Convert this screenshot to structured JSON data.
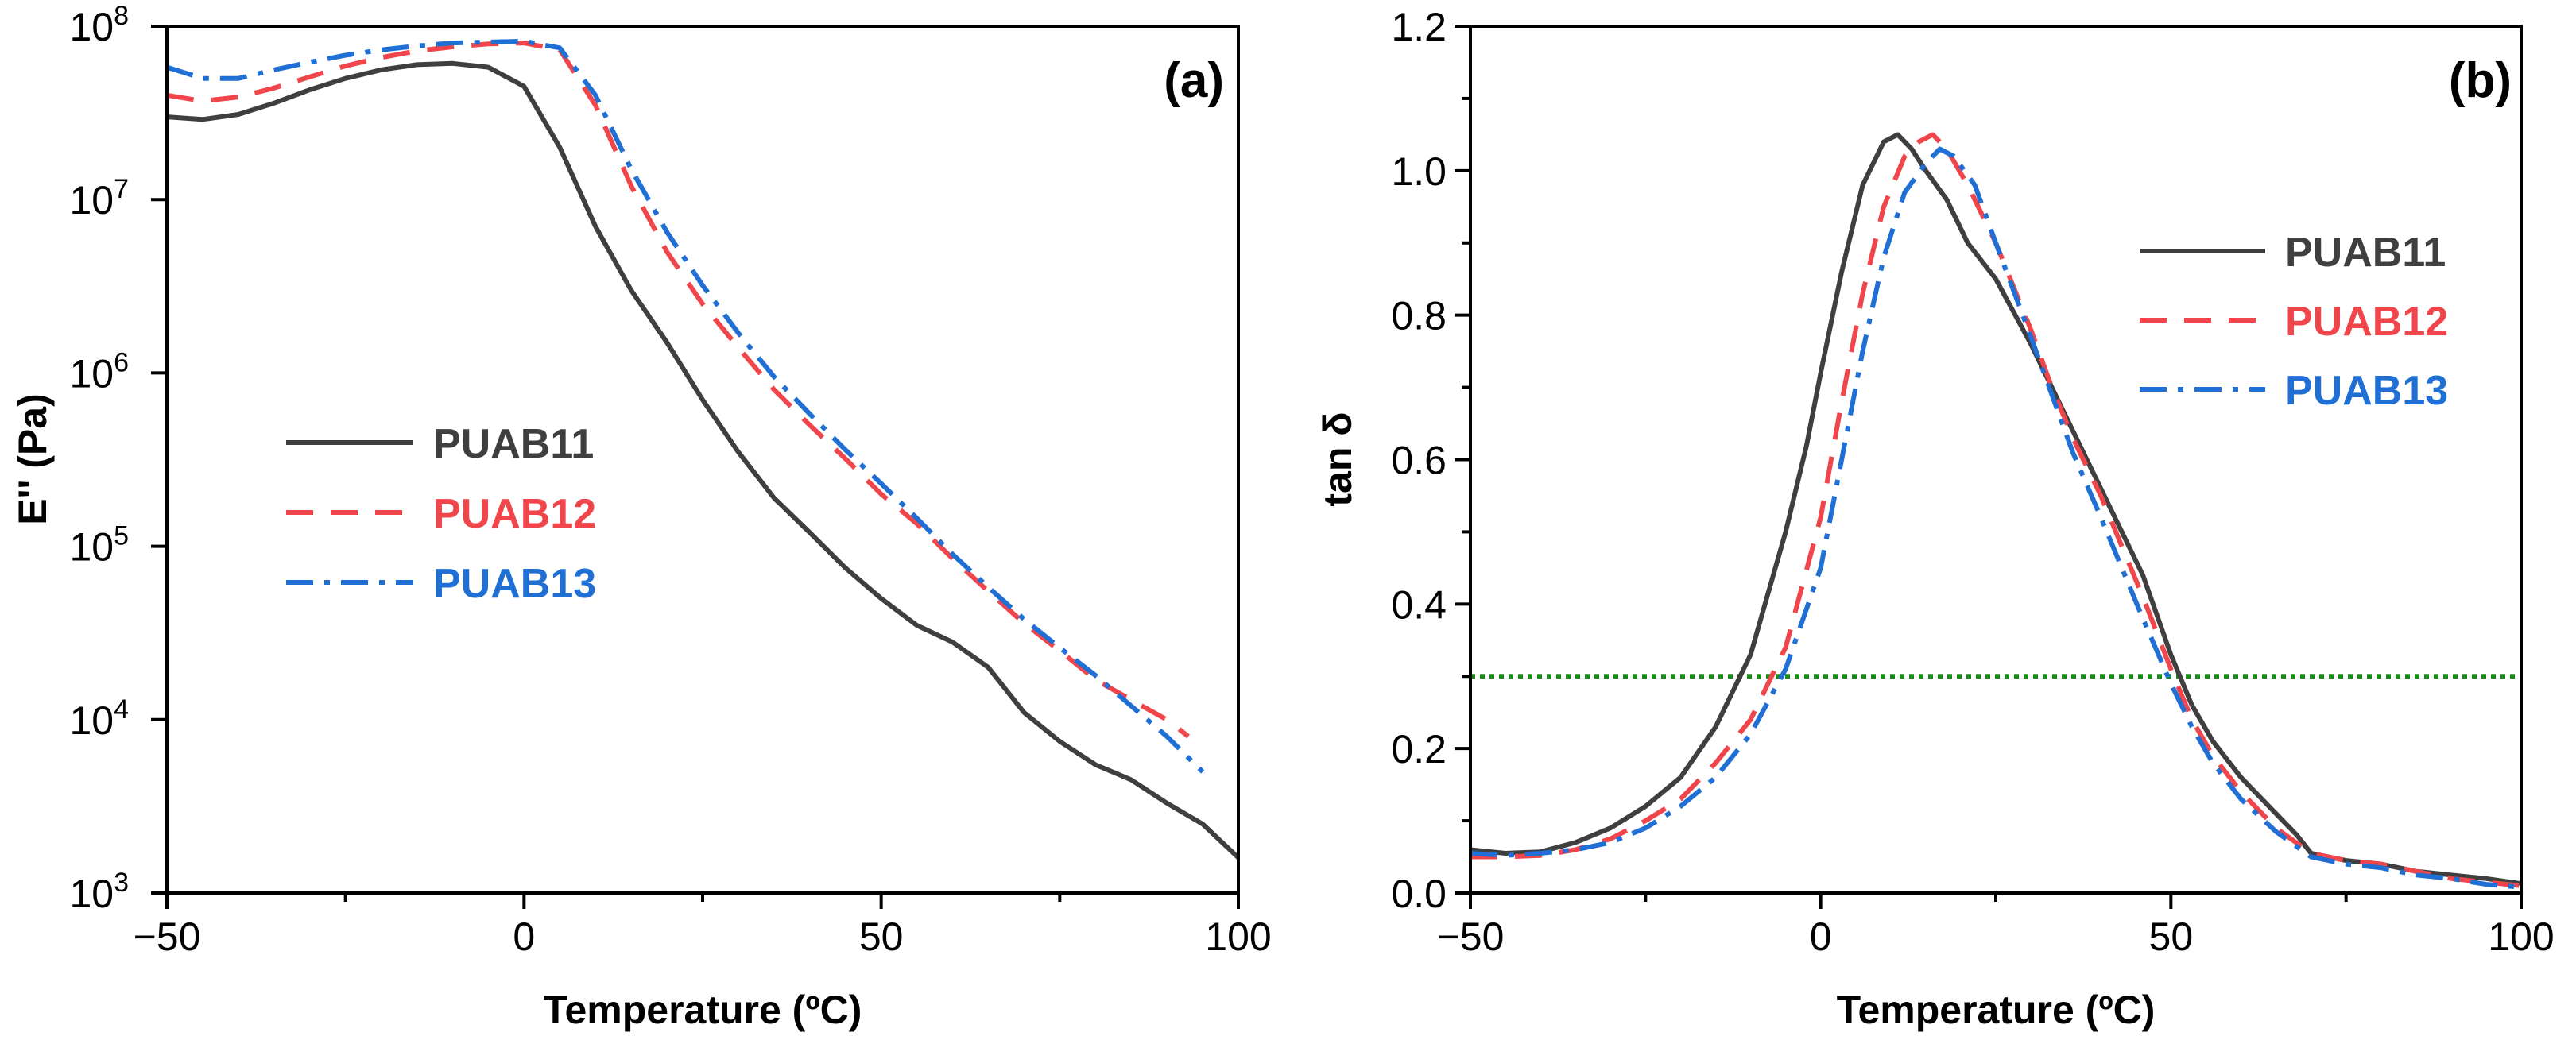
{
  "chart_data": [
    {
      "type": "line",
      "panel_label": "(a)",
      "xlabel": "Temperature (ºC)",
      "ylabel": "E'' (Pa)",
      "yscale": "log",
      "xlim": [
        -50,
        100
      ],
      "ylim": [
        1000,
        100000000
      ],
      "xticks": [
        -50,
        0,
        50,
        100
      ],
      "xtick_labels": [
        "−50",
        "0",
        "50",
        "100"
      ],
      "yticks": [
        1000,
        10000,
        100000,
        1000000,
        10000000,
        100000000
      ],
      "ytick_base": [
        "10",
        "10",
        "10",
        "10",
        "10",
        "10"
      ],
      "ytick_exp": [
        "3",
        "4",
        "5",
        "6",
        "7",
        "8"
      ],
      "legend_position": "middle-left",
      "series": [
        {
          "name": "PUAB11",
          "color": "#3f3f3f",
          "dash": "solid",
          "x": [
            -50,
            -45,
            -40,
            -35,
            -30,
            -25,
            -20,
            -15,
            -10,
            -5,
            0,
            5,
            10,
            15,
            20,
            25,
            30,
            35,
            40,
            45,
            50,
            55,
            60,
            65,
            70,
            75,
            80,
            85,
            90,
            95,
            100
          ],
          "y": [
            30000000,
            29000000,
            31000000,
            36000000,
            43000000,
            50000000,
            56000000,
            60000000,
            61000000,
            58000000,
            45000000,
            20000000,
            7000000,
            3000000,
            1500000,
            700000,
            350000,
            190000,
            120000,
            75000,
            50000,
            35000,
            28000,
            20000,
            11000,
            7500,
            5500,
            4500,
            3300,
            2500,
            1600
          ]
        },
        {
          "name": "PUAB12",
          "color": "#f0464b",
          "dash": "dash",
          "x": [
            -50,
            -45,
            -40,
            -35,
            -30,
            -25,
            -20,
            -15,
            -10,
            -5,
            0,
            5,
            10,
            15,
            20,
            25,
            30,
            35,
            40,
            45,
            50,
            55,
            60,
            65,
            70,
            75,
            80,
            85,
            90,
            93
          ],
          "y": [
            40000000,
            37000000,
            39000000,
            44000000,
            51000000,
            59000000,
            66000000,
            72000000,
            76000000,
            79000000,
            80000000,
            73000000,
            35000000,
            12000000,
            5000000,
            2500000,
            1400000,
            800000,
            500000,
            320000,
            200000,
            135000,
            85000,
            55000,
            36000,
            25000,
            17000,
            13000,
            10000,
            8000
          ]
        },
        {
          "name": "PUAB13",
          "color": "#1f6fd4",
          "dash": "dashdot",
          "x": [
            -50,
            -45,
            -40,
            -35,
            -30,
            -25,
            -20,
            -15,
            -10,
            -5,
            0,
            5,
            10,
            15,
            20,
            25,
            30,
            35,
            40,
            45,
            50,
            55,
            60,
            65,
            70,
            75,
            80,
            85,
            90,
            95
          ],
          "y": [
            58000000,
            50000000,
            50000000,
            56000000,
            62000000,
            68000000,
            73000000,
            77000000,
            80000000,
            81000000,
            82000000,
            75000000,
            40000000,
            15000000,
            6500000,
            3200000,
            1700000,
            950000,
            580000,
            360000,
            230000,
            145000,
            90000,
            58000,
            38000,
            26000,
            18000,
            12000,
            8000,
            5000
          ]
        }
      ]
    },
    {
      "type": "line",
      "panel_label": "(b)",
      "xlabel": "Temperature (ºC)",
      "ylabel": "tan δ",
      "xlim": [
        -50,
        100
      ],
      "ylim": [
        0,
        1.2
      ],
      "xticks": [
        -50,
        0,
        50,
        100
      ],
      "xtick_labels": [
        "−50",
        "0",
        "50",
        "100"
      ],
      "yticks": [
        0,
        0.2,
        0.4,
        0.6,
        0.8,
        1.0,
        1.2
      ],
      "ytick_labels": [
        "0.0",
        "0.2",
        "0.4",
        "0.6",
        "0.8",
        "1.0",
        "1.2"
      ],
      "legend_position": "upper-right",
      "reference_line": {
        "y": 0.3,
        "color": "#1a8a1a",
        "style": "dotted"
      },
      "series": [
        {
          "name": "PUAB11",
          "color": "#3f3f3f",
          "dash": "solid",
          "x": [
            -50,
            -45,
            -40,
            -35,
            -30,
            -25,
            -20,
            -15,
            -10,
            -5,
            -2,
            0,
            3,
            6,
            9,
            11,
            13,
            15,
            18,
            21,
            25,
            30,
            33,
            36,
            40,
            43,
            46,
            50,
            53,
            56,
            60,
            65,
            68,
            70,
            75,
            80,
            85,
            90,
            95,
            100
          ],
          "y": [
            0.06,
            0.055,
            0.057,
            0.07,
            0.09,
            0.12,
            0.16,
            0.23,
            0.33,
            0.5,
            0.62,
            0.72,
            0.86,
            0.98,
            1.04,
            1.05,
            1.03,
            1.0,
            0.96,
            0.9,
            0.85,
            0.76,
            0.7,
            0.64,
            0.56,
            0.5,
            0.44,
            0.33,
            0.26,
            0.21,
            0.16,
            0.11,
            0.08,
            0.055,
            0.045,
            0.04,
            0.03,
            0.025,
            0.02,
            0.013
          ]
        },
        {
          "name": "PUAB12",
          "color": "#f0464b",
          "dash": "dash",
          "x": [
            -50,
            -45,
            -40,
            -35,
            -30,
            -25,
            -20,
            -15,
            -10,
            -5,
            0,
            3,
            6,
            9,
            12,
            14,
            16,
            18,
            21,
            25,
            30,
            33,
            36,
            40,
            43,
            46,
            50,
            53,
            56,
            60,
            65,
            70,
            75,
            80,
            85,
            90,
            95,
            100
          ],
          "y": [
            0.05,
            0.05,
            0.052,
            0.06,
            0.075,
            0.1,
            0.13,
            0.18,
            0.24,
            0.34,
            0.52,
            0.68,
            0.83,
            0.95,
            1.02,
            1.04,
            1.05,
            1.03,
            0.98,
            0.9,
            0.78,
            0.7,
            0.63,
            0.55,
            0.48,
            0.41,
            0.31,
            0.24,
            0.19,
            0.14,
            0.09,
            0.055,
            0.045,
            0.04,
            0.03,
            0.02,
            0.015,
            0.01
          ]
        },
        {
          "name": "PUAB13",
          "color": "#1f6fd4",
          "dash": "dashdot",
          "x": [
            -50,
            -45,
            -40,
            -35,
            -30,
            -25,
            -20,
            -15,
            -10,
            -5,
            0,
            3,
            6,
            9,
            12,
            15,
            17,
            19,
            22,
            25,
            30,
            33,
            36,
            40,
            43,
            46,
            50,
            53,
            56,
            60,
            65,
            70,
            75,
            80,
            85,
            90,
            95,
            100
          ],
          "y": [
            0.055,
            0.052,
            0.055,
            0.06,
            0.07,
            0.09,
            0.12,
            0.16,
            0.22,
            0.31,
            0.45,
            0.6,
            0.75,
            0.88,
            0.97,
            1.01,
            1.03,
            1.02,
            0.98,
            0.9,
            0.77,
            0.69,
            0.61,
            0.52,
            0.45,
            0.38,
            0.29,
            0.23,
            0.18,
            0.13,
            0.085,
            0.05,
            0.04,
            0.035,
            0.025,
            0.02,
            0.012,
            0.008
          ]
        }
      ]
    }
  ]
}
